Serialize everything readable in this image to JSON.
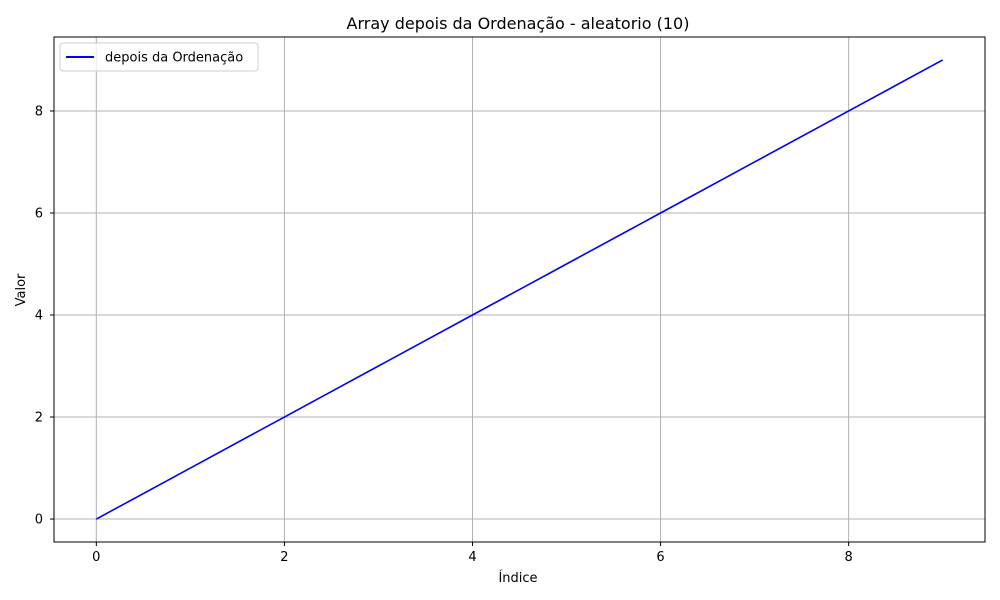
{
  "chart_data": {
    "type": "line",
    "title": "Array depois da Ordenação - aleatorio (10)",
    "xlabel": "Índice",
    "ylabel": "Valor",
    "xlim": [
      -0.45,
      9.45
    ],
    "ylim": [
      -0.45,
      9.45
    ],
    "xticks": [
      0,
      2,
      4,
      6,
      8
    ],
    "yticks": [
      0,
      2,
      4,
      6,
      8
    ],
    "grid": true,
    "legend_position": "top-left",
    "series": [
      {
        "name": "depois da Ordenação",
        "color": "#0000ff",
        "x": [
          0,
          1,
          2,
          3,
          4,
          5,
          6,
          7,
          8,
          9
        ],
        "y": [
          0,
          1,
          2,
          3,
          4,
          5,
          6,
          7,
          8,
          9
        ]
      }
    ]
  }
}
